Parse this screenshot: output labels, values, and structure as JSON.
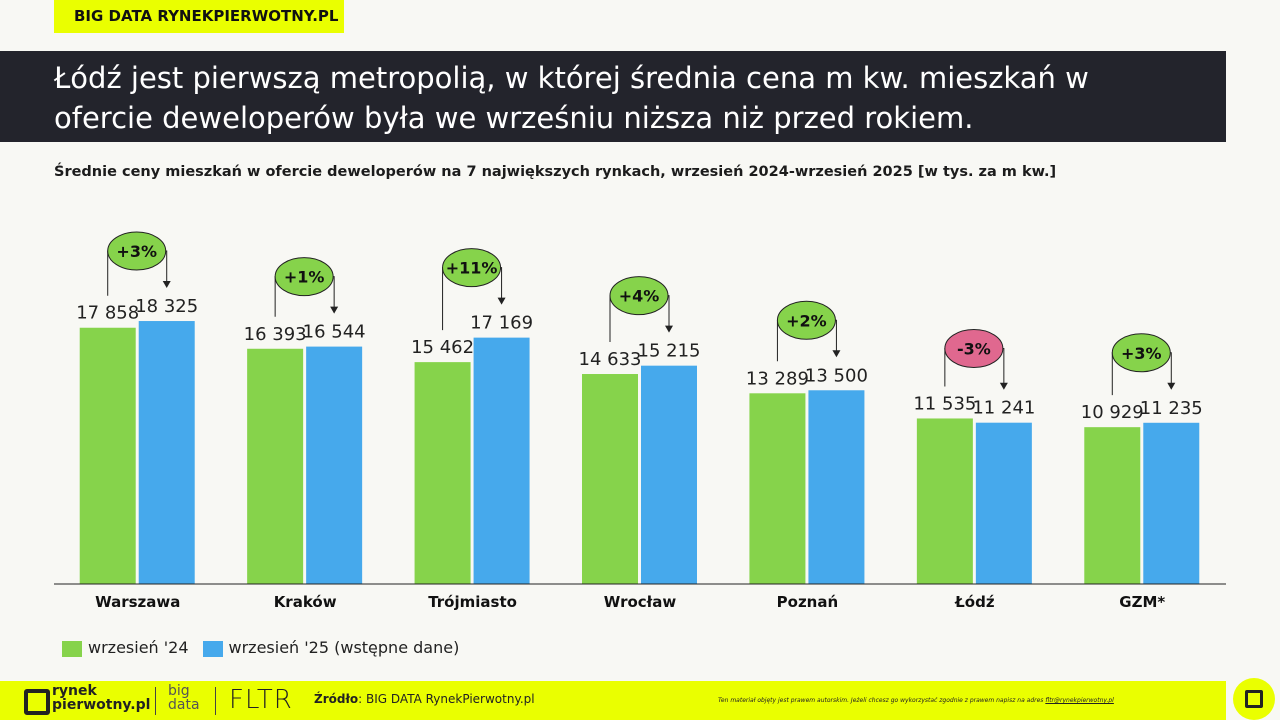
{
  "header": {
    "tag": "BIG DATA RYNEKPIERWOTNY.PL",
    "title": "Łódź jest pierwszą metropolią, w której średnia cena m kw. mieszkań w ofercie deweloperów była we wrześniu niższa niż przed rokiem."
  },
  "chart_data": {
    "type": "bar",
    "title": "Średnie ceny mieszkań w ofercie deweloperów na 7 największych rynkach, wrzesień 2024-wrzesień 2025 [w tys. za m kw.]",
    "categories": [
      "Warszawa",
      "Kraków",
      "Trójmiasto",
      "Wrocław",
      "Poznań",
      "Łódź",
      "GZM*"
    ],
    "series": [
      {
        "name": "wrzesień '24",
        "color": "#86d34b",
        "values": [
          17858,
          16393,
          15462,
          14633,
          13289,
          11535,
          10929
        ],
        "labels": [
          "17 858",
          "16 393",
          "15 462",
          "14 633",
          "13 289",
          "11 535",
          "10 929"
        ]
      },
      {
        "name": "wrzesień '25 (wstępne dane)",
        "color": "#46a9ec",
        "values": [
          18325,
          16544,
          17169,
          15215,
          13500,
          11241,
          11235
        ],
        "labels": [
          "18 325",
          "16 544",
          "17 169",
          "15 215",
          "13 500",
          "11 241",
          "11 235"
        ]
      }
    ],
    "changes": [
      "+3%",
      "+1%",
      "+11%",
      "+4%",
      "+2%",
      "-3%",
      "+3%"
    ],
    "change_colors": {
      "positive": "#86d34b",
      "negative": "#e0688f"
    },
    "ylim": [
      0,
      20000
    ],
    "grid": false,
    "legend": "bottom-left"
  },
  "footer": {
    "logo1": "rynek pierwotny.pl",
    "logo2": "big data",
    "logo3": "FLTR",
    "source_label": "Źródło",
    "source": ": BIG DATA RynekPierwotny.pl",
    "disclaimer": "Ten materiał objęty jest prawem autorskim. Jeżeli chcesz go wykorzystać zgodnie z prawem napisz na adres ",
    "email": "fltr@rynekpierwotny.pl"
  }
}
